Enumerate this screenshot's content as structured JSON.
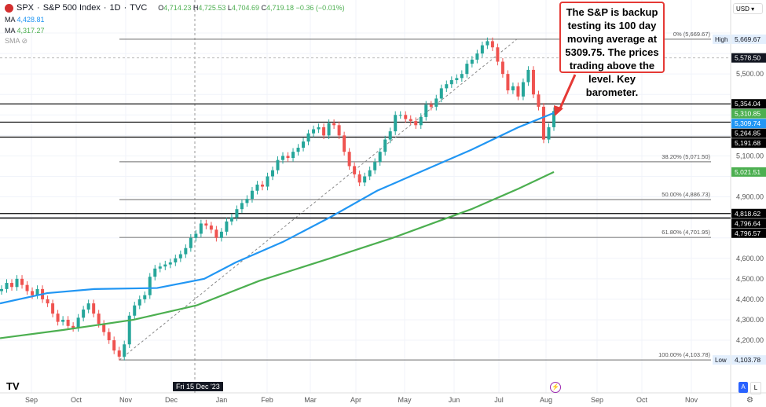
{
  "header": {
    "symbol": "SPX",
    "title": "S&P 500 Index",
    "interval": "1D",
    "source": "TVC",
    "open": "4,714.23",
    "high": "4,725.53",
    "low": "4,704.69",
    "close": "4,719.18",
    "change": "−0.36 (−0.01%)"
  },
  "indicators": [
    {
      "label": "MA",
      "value": "4,428.81",
      "color": "#2196f3"
    },
    {
      "label": "MA",
      "value": "4,317.27",
      "color": "#4caf50"
    },
    {
      "label": "SMA",
      "value": ""
    }
  ],
  "annotation": "The S&P is backup testing its 100 day moving average at 5309.75. The prices trading above the level. Key barometer.",
  "currency": "USD",
  "crosshair_label": "Fri 15 Dec '23",
  "buttons": {
    "auto": "A",
    "log": "L"
  },
  "chart_data": {
    "type": "candlestick",
    "ylim": [
      4000,
      5760
    ],
    "y_ticks": [
      4200,
      4300,
      4400,
      4500,
      4600,
      4700,
      4800,
      4900,
      5000,
      5100,
      5200,
      5300,
      5400,
      5500,
      5600,
      5700
    ],
    "x_ticks": [
      "Sep",
      "Oct",
      "Nov",
      "Dec",
      "Jan",
      "Feb",
      "Mar",
      "Apr",
      "May",
      "Jun",
      "Jul",
      "Aug",
      "Sep",
      "Oct",
      "Nov"
    ],
    "closes": [
      4450,
      4480,
      4460,
      4500,
      4470,
      4440,
      4420,
      4450,
      4400,
      4380,
      4330,
      4290,
      4300,
      4270,
      4260,
      4310,
      4350,
      4380,
      4330,
      4280,
      4240,
      4200,
      4150,
      4120,
      4180,
      4320,
      4370,
      4400,
      4420,
      4510,
      4550,
      4560,
      4570,
      4580,
      4600,
      4620,
      4650,
      4700,
      4720,
      4770,
      4760,
      4740,
      4700,
      4730,
      4780,
      4800,
      4840,
      4870,
      4890,
      4930,
      4960,
      4950,
      5000,
      5030,
      5080,
      5100,
      5090,
      5120,
      5140,
      5170,
      5210,
      5230,
      5240,
      5200,
      5260,
      5250,
      5200,
      5120,
      5050,
      5010,
      4970,
      5000,
      5030,
      5070,
      5120,
      5180,
      5220,
      5300,
      5300,
      5280,
      5270,
      5250,
      5290,
      5350,
      5340,
      5380,
      5430,
      5450,
      5470,
      5480,
      5500,
      5550,
      5570,
      5600,
      5640,
      5660,
      5630,
      5560,
      5500,
      5420,
      5440,
      5390,
      5460,
      5520,
      5400,
      5340,
      5180,
      5240,
      5319
    ],
    "series": [
      {
        "name": "MA",
        "value_label": "5,309.74",
        "color": "#2196f3",
        "points": [
          [
            0,
            4380
          ],
          [
            60,
            4430
          ],
          [
            120,
            4450
          ],
          [
            200,
            4455
          ],
          [
            260,
            4500
          ],
          [
            300,
            4580
          ],
          [
            360,
            4680
          ],
          [
            420,
            4800
          ],
          [
            480,
            4930
          ],
          [
            540,
            5030
          ],
          [
            600,
            5130
          ],
          [
            660,
            5240
          ],
          [
            705,
            5309.74
          ]
        ]
      },
      {
        "name": "MA",
        "value_label": "5,021.51",
        "color": "#4caf50",
        "points": [
          [
            0,
            4210
          ],
          [
            80,
            4250
          ],
          [
            170,
            4300
          ],
          [
            250,
            4370
          ],
          [
            330,
            4490
          ],
          [
            420,
            4600
          ],
          [
            500,
            4700
          ],
          [
            600,
            4840
          ],
          [
            660,
            4940
          ],
          [
            705,
            5021.51
          ]
        ]
      }
    ],
    "fib_levels": [
      {
        "label": "0% (5,669.67)",
        "value": 5669.67
      },
      {
        "label": "38.20% (5,071.50)",
        "value": 5071.5
      },
      {
        "label": "50.00% (4,886.73)",
        "value": 4886.73
      },
      {
        "label": "61.80% (4,701.95)",
        "value": 4701.95
      },
      {
        "label": "100.00% (4,103.78)",
        "value": 4103.78
      }
    ],
    "horizontal_lines": [
      5354.04,
      5264.85,
      5191.68,
      4818.62,
      4796.64,
      4796.57
    ],
    "price_labels": [
      {
        "text": "High",
        "value": "5,669.67",
        "bg": "#e3effd",
        "fg": "#131722"
      },
      {
        "text": "",
        "value": "5,578.50",
        "bg": "#131722",
        "fg": "#fff"
      },
      {
        "text": "",
        "value": "5,354.04",
        "bg": "#000",
        "fg": "#fff"
      },
      {
        "text": "",
        "value": "5,310.85",
        "bg": "#4caf50",
        "fg": "#fff"
      },
      {
        "text": "",
        "value": "5,309.74",
        "bg": "#2196f3",
        "fg": "#fff"
      },
      {
        "text": "",
        "value": "5,264.85",
        "bg": "#000",
        "fg": "#fff"
      },
      {
        "text": "",
        "value": "5,191.68",
        "bg": "#000",
        "fg": "#fff"
      },
      {
        "text": "",
        "value": "5,021.51",
        "bg": "#4caf50",
        "fg": "#fff"
      },
      {
        "text": "",
        "value": "4,818.62",
        "bg": "#000",
        "fg": "#fff"
      },
      {
        "text": "",
        "value": "4,796.64",
        "bg": "#000",
        "fg": "#fff"
      },
      {
        "text": "",
        "value": "4,796.57",
        "bg": "#000",
        "fg": "#fff"
      },
      {
        "text": "Low",
        "value": "4,103.78",
        "bg": "#e3effd",
        "fg": "#131722"
      }
    ],
    "colors": {
      "up": "#26a69a",
      "down": "#ef5350",
      "annotation_border": "#e53935"
    }
  }
}
